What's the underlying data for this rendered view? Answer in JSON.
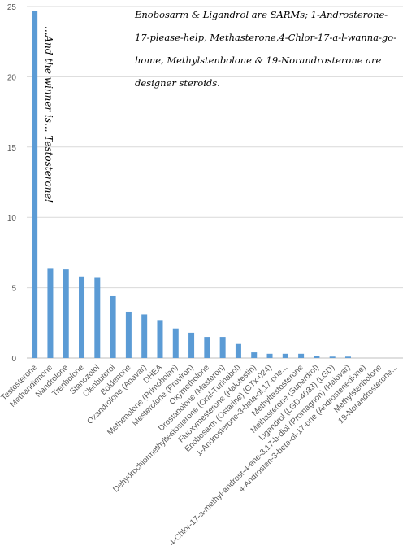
{
  "chart_data": {
    "type": "bar",
    "annotations": [
      "Enobosarm & Ligandrol are SARMs; 1-Androsterone-17-please-help, Methasterone,4-Chlor-17-a-l-wanna-go-home, Methylstenbolone & 19-Norandrosterone are designer steroids.",
      "...And the winner is... Testosterone!"
    ],
    "categories": [
      "Testosterone",
      "Methandienone",
      "Nandrolone",
      "Trenbolone",
      "Stanozolol",
      "Clenbuterol",
      "Boldenone",
      "Oxandrolone (Anavar)",
      "DHEA",
      "Methenolone (Primobolan)",
      "Mesterolone (Proviron)",
      "Oxymetholone",
      "Drostanolone (Masteron)",
      "Dehydrochlormethyltestosterone (Oral-Turinabol)",
      "Fluoxymesterone (Halotestin)",
      "Enobosarm (Ostarine) (GTx-024)",
      "1-Androsterone-3-beta-ol,17-one...",
      "Methyltestosterone",
      "Methasterone (Superdrol)",
      "Ligandrol (LGD-4033) (LGD)",
      "4-Chlor-17-a-methyl-androst-4-ene-3,17-b-diol (Promagnon) (Halovar)",
      "4-Androsten-3-beta-ol-17-one (Androstenedione)",
      "Methylstenbolone",
      "19-Norandrosterone..."
    ],
    "values": [
      24.7,
      6.4,
      6.3,
      5.8,
      5.7,
      4.4,
      3.3,
      3.1,
      2.7,
      2.1,
      1.8,
      1.5,
      1.5,
      1.0,
      0.4,
      0.3,
      0.3,
      0.3,
      0.15,
      0.1,
      0.1,
      0,
      0,
      0
    ],
    "color": "#5b9bd5",
    "ylim": [
      0,
      25
    ],
    "yticks": [
      0,
      5,
      10,
      15,
      20,
      25
    ],
    "grid": true
  }
}
